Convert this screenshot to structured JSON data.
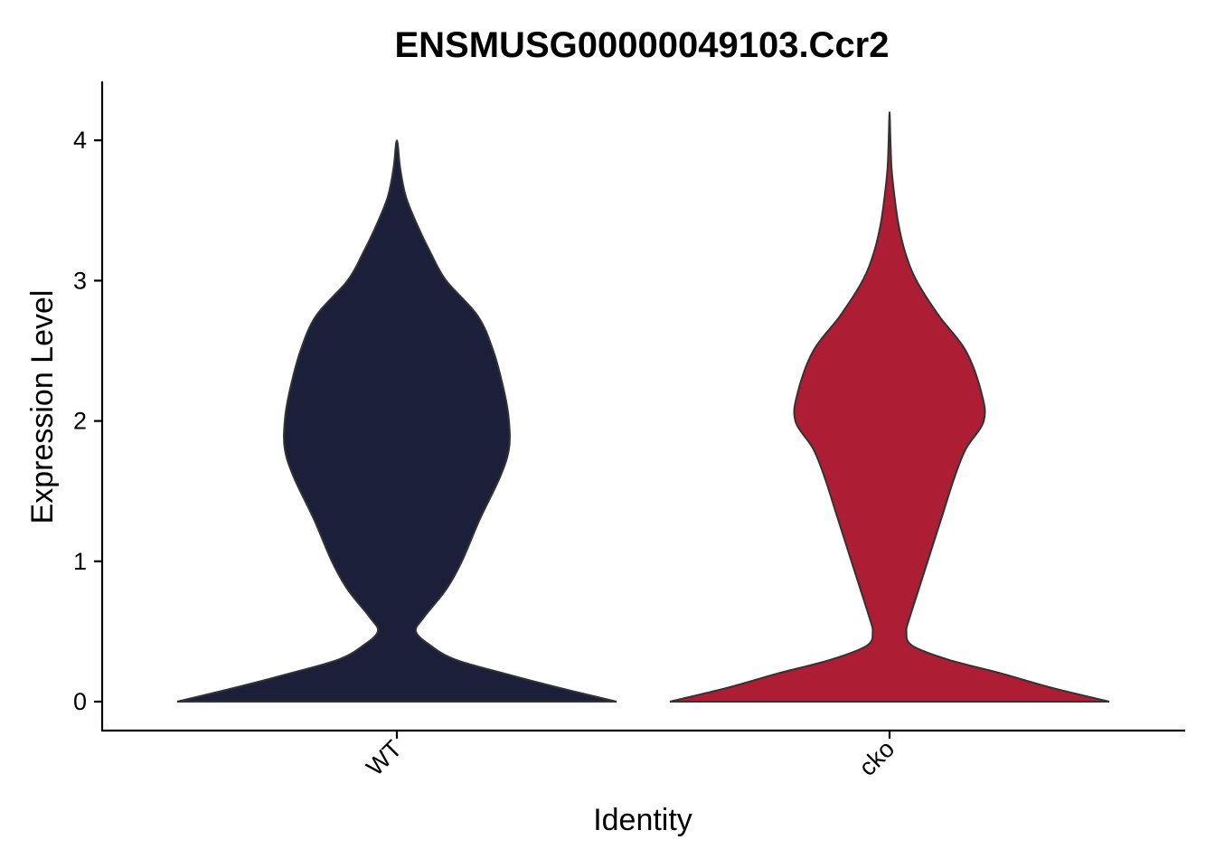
{
  "chart_data": {
    "type": "violin",
    "title": "ENSMUSG00000049103.Ccr2",
    "xlabel": "Identity",
    "ylabel": "Expression Level",
    "categories": [
      "WT",
      "cko"
    ],
    "ylim": [
      -0.2,
      4.4
    ],
    "yticks": [
      0,
      1,
      2,
      3,
      4
    ],
    "grid": false,
    "legend": "none",
    "series": [
      {
        "category": "WT",
        "color": "#1b1f3a",
        "max": 4.0,
        "density": [
          [
            0.0,
            0.98
          ],
          [
            0.1,
            0.72
          ],
          [
            0.2,
            0.48
          ],
          [
            0.3,
            0.26
          ],
          [
            0.4,
            0.15
          ],
          [
            0.5,
            0.085
          ],
          [
            0.6,
            0.12
          ],
          [
            0.8,
            0.22
          ],
          [
            1.0,
            0.29
          ],
          [
            1.3,
            0.37
          ],
          [
            1.6,
            0.46
          ],
          [
            1.8,
            0.5
          ],
          [
            2.0,
            0.5
          ],
          [
            2.2,
            0.48
          ],
          [
            2.5,
            0.43
          ],
          [
            2.75,
            0.36
          ],
          [
            3.0,
            0.22
          ],
          [
            3.2,
            0.15
          ],
          [
            3.4,
            0.09
          ],
          [
            3.6,
            0.04
          ],
          [
            3.8,
            0.015
          ],
          [
            4.0,
            0.0
          ]
        ]
      },
      {
        "category": "cko",
        "color": "#ad1e35",
        "max": 4.2,
        "density": [
          [
            0.0,
            0.98
          ],
          [
            0.1,
            0.72
          ],
          [
            0.2,
            0.5
          ],
          [
            0.3,
            0.26
          ],
          [
            0.4,
            0.1
          ],
          [
            0.5,
            0.075
          ],
          [
            0.6,
            0.09
          ],
          [
            0.8,
            0.13
          ],
          [
            1.0,
            0.17
          ],
          [
            1.3,
            0.23
          ],
          [
            1.6,
            0.29
          ],
          [
            1.8,
            0.34
          ],
          [
            2.0,
            0.42
          ],
          [
            2.2,
            0.41
          ],
          [
            2.5,
            0.34
          ],
          [
            2.75,
            0.22
          ],
          [
            3.0,
            0.12
          ],
          [
            3.2,
            0.07
          ],
          [
            3.4,
            0.04
          ],
          [
            3.6,
            0.022
          ],
          [
            3.8,
            0.009
          ],
          [
            4.0,
            0.004
          ],
          [
            4.2,
            0.0
          ]
        ]
      }
    ]
  }
}
